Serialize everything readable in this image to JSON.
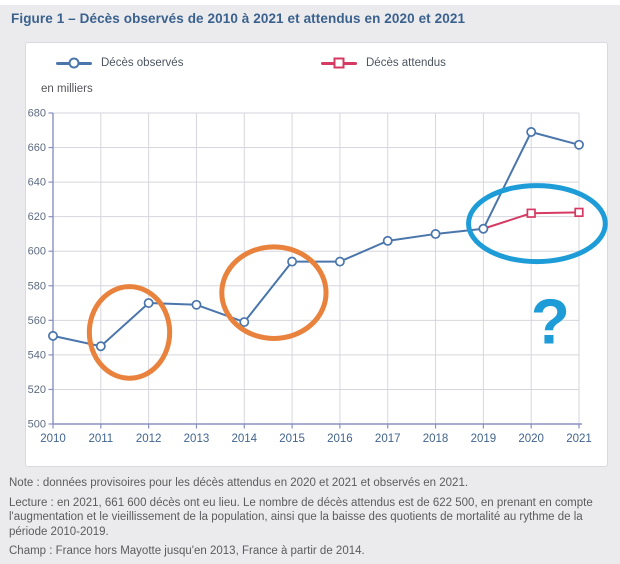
{
  "title": "Figure 1 – Décès observés de 2010 à 2021 et attendus en 2020 et 2021",
  "chart_data": {
    "type": "line",
    "ylabel": "en milliers",
    "x": [
      2010,
      2011,
      2012,
      2013,
      2014,
      2015,
      2016,
      2017,
      2018,
      2019,
      2020,
      2021
    ],
    "ylim": [
      500,
      680
    ],
    "ytick_step": 20,
    "grid": true,
    "legend_position": "top",
    "axis_color": "#8a90c0",
    "grid_color": "#d6d6de",
    "ytick_label_color": "#5d6b80",
    "xtick_label_color": "#42658f",
    "series": [
      {
        "name": "Décès observés",
        "color": "#4a76ac",
        "marker": "circle",
        "values": [
          551,
          545,
          570,
          569,
          559,
          594,
          594,
          606,
          610,
          613,
          669,
          661.6
        ]
      },
      {
        "name": "Décès attendus",
        "color": "#d63a62",
        "marker": "square",
        "values": [
          null,
          null,
          null,
          null,
          null,
          null,
          null,
          null,
          null,
          613,
          622,
          622.5
        ],
        "marker_years": [
          2020,
          2021
        ]
      }
    ],
    "annotations": [
      {
        "kind": "ellipse",
        "color": "#e8823c",
        "year": 2011.6,
        "value": 553,
        "rx_years": 0.84,
        "ry_values": 26.5,
        "stroke_width": 5
      },
      {
        "kind": "ellipse",
        "color": "#e8823c",
        "year": 2014.62,
        "value": 576,
        "rx_years": 1.09,
        "ry_values": 26.5,
        "stroke_width": 5
      },
      {
        "kind": "ellipse",
        "color": "#1d9cd8",
        "year": 2020.12,
        "value": 616,
        "rx_years": 1.43,
        "ry_values": 22,
        "stroke_width": 5
      },
      {
        "kind": "text",
        "text": "?",
        "color": "#1d9cd8",
        "year": 2020.4,
        "value": 546.5,
        "font_size": 64,
        "bold": true
      }
    ]
  },
  "notes": [
    "Note : données provisoires pour les décès attendus en 2020 et 2021 et observés en 2021.",
    "Lecture : en 2021, 661 600 décès ont eu lieu. Le nombre de décès attendus est de 622 500, en prenant en compte l'augmentation et le vieillissement de la population, ainsi que la baisse des quotients de mortalité au rythme de la période 2010-2019.",
    "Champ : France hors Mayotte jusqu'en 2013, France à partir de 2014."
  ]
}
